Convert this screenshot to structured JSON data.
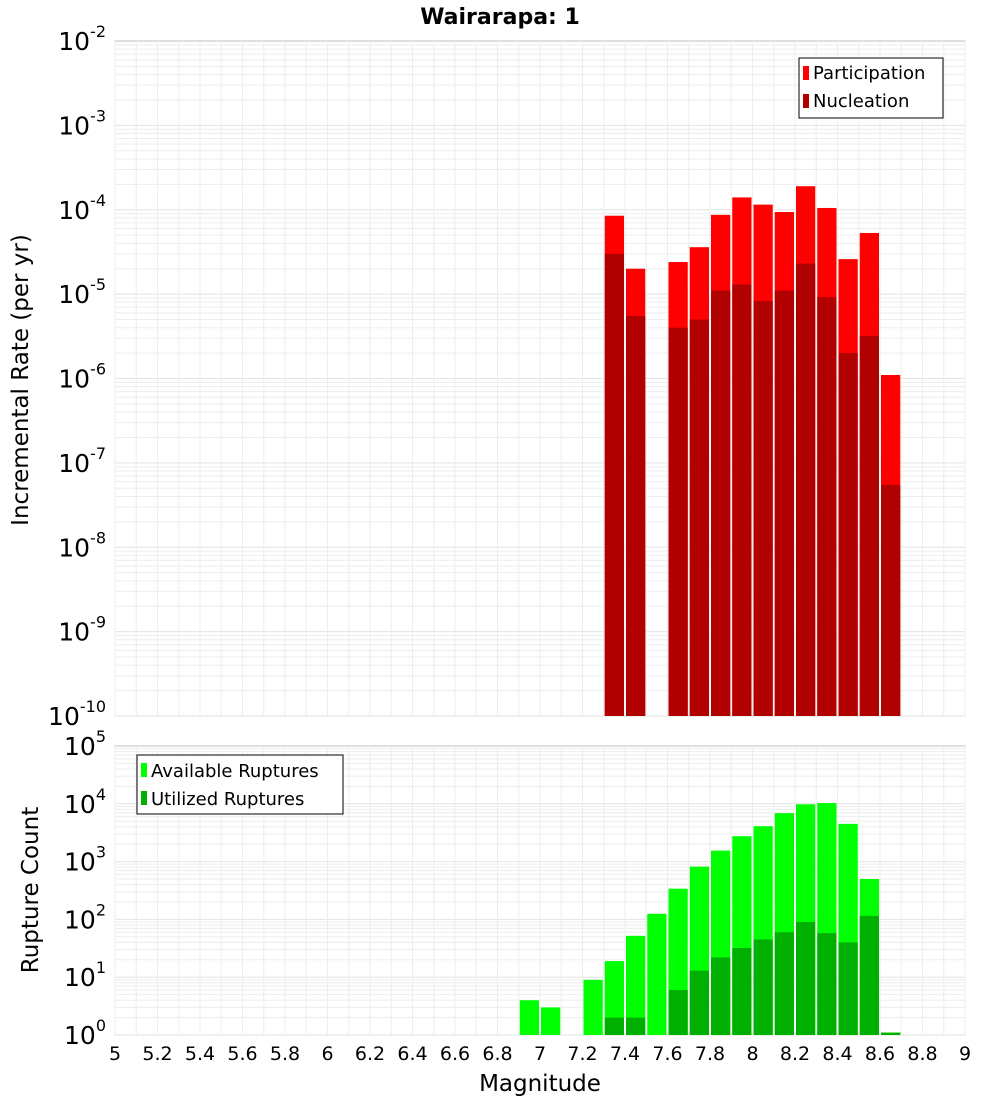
{
  "chart_data": [
    {
      "type": "bar",
      "title": "Wairarapa: 1",
      "ylabel": "Incremental Rate (per yr)",
      "xlabel": "",
      "yscale": "log",
      "ylim": [
        1e-10,
        0.01
      ],
      "xlim": [
        5,
        9
      ],
      "x": [
        7.35,
        7.45,
        7.55,
        7.65,
        7.75,
        7.85,
        7.95,
        8.05,
        8.15,
        8.25,
        8.35,
        8.45,
        8.55,
        8.65
      ],
      "series": [
        {
          "name": "Participation",
          "color": "#ff0000",
          "values": [
            8.5e-05,
            2e-05,
            null,
            2.4e-05,
            3.6e-05,
            8.7e-05,
            0.00014,
            0.000115,
            9.4e-05,
            0.00019,
            0.000105,
            2.6e-05,
            5.3e-05,
            1.1e-06
          ]
        },
        {
          "name": "Nucleation",
          "color": "#b00000",
          "values": [
            3e-05,
            5.5e-06,
            null,
            4e-06,
            5e-06,
            1.1e-05,
            1.3e-05,
            8.3e-06,
            1.1e-05,
            2.3e-05,
            9.2e-06,
            2e-06,
            3.2e-06,
            5.5e-08
          ]
        }
      ],
      "legend": "top-right",
      "grid": true
    },
    {
      "type": "bar",
      "title": "",
      "ylabel": "Rupture Count",
      "xlabel": "Magnitude",
      "yscale": "log",
      "ylim": [
        1,
        100000.0
      ],
      "xlim": [
        5,
        9
      ],
      "xticks": [
        "5",
        "5.2",
        "5.4",
        "5.6",
        "5.8",
        "6",
        "6.2",
        "6.4",
        "6.6",
        "6.8",
        "7",
        "7.2",
        "7.4",
        "7.6",
        "7.8",
        "8",
        "8.2",
        "8.4",
        "8.6",
        "8.8",
        "9"
      ],
      "x": [
        6.95,
        7.05,
        7.15,
        7.25,
        7.35,
        7.45,
        7.55,
        7.65,
        7.75,
        7.85,
        7.95,
        8.05,
        8.15,
        8.25,
        8.35,
        8.45,
        8.55,
        8.65
      ],
      "series": [
        {
          "name": "Available Ruptures",
          "color": "#00ff00",
          "values": [
            4,
            3,
            null,
            9,
            19,
            52,
            125,
            340,
            820,
            1550,
            2750,
            4100,
            6900,
            9800,
            10300,
            4500,
            500,
            1.1
          ]
        },
        {
          "name": "Utilized Ruptures",
          "color": "#00b000",
          "values": [
            null,
            null,
            null,
            null,
            2,
            2,
            null,
            6,
            13,
            22,
            32,
            45,
            60,
            90,
            58,
            40,
            115,
            1.1
          ]
        }
      ],
      "legend": "top-left",
      "grid": true
    }
  ]
}
